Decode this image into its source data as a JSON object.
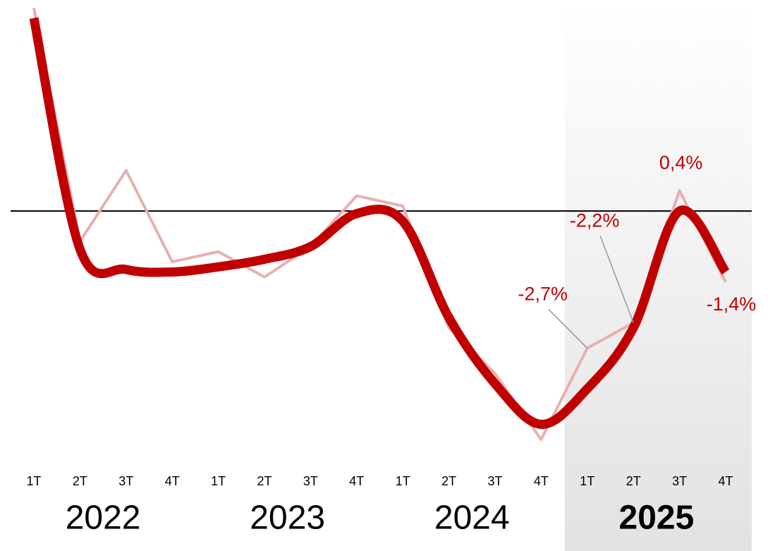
{
  "chart_data": {
    "type": "line",
    "categories": [
      "1T",
      "2T",
      "3T",
      "4T",
      "1T",
      "2T",
      "3T",
      "4T",
      "1T",
      "2T",
      "3T",
      "4T",
      "1T",
      "2T",
      "3T",
      "4T"
    ],
    "groups": [
      "2022",
      "2023",
      "2024",
      "2025"
    ],
    "highlight": "2025",
    "series": [
      {
        "color": "#e8b0b0",
        "width": 4,
        "values": [
          4.0,
          -0.6,
          0.8,
          -1.0,
          -0.8,
          -1.3,
          -0.7,
          0.3,
          0.1,
          -2.3,
          -3.2,
          -4.5,
          -2.7,
          -2.2,
          0.4,
          -1.4
        ],
        "value_labels": [
          null,
          null,
          null,
          null,
          null,
          null,
          null,
          null,
          null,
          null,
          null,
          null,
          "-2,7%",
          "-2,2%",
          "0,4%",
          "-1,4%"
        ]
      },
      {
        "color": "#c00000",
        "width": 13,
        "smooth": true,
        "values": [
          3.8,
          -0.75,
          -1.15,
          -1.2,
          -1.1,
          -0.95,
          -0.7,
          -0.05,
          -0.2,
          -2.1,
          -3.4,
          -4.2,
          -3.5,
          -2.3,
          0.0,
          -1.2
        ]
      }
    ],
    "ylim": [
      -5,
      4.1
    ]
  }
}
